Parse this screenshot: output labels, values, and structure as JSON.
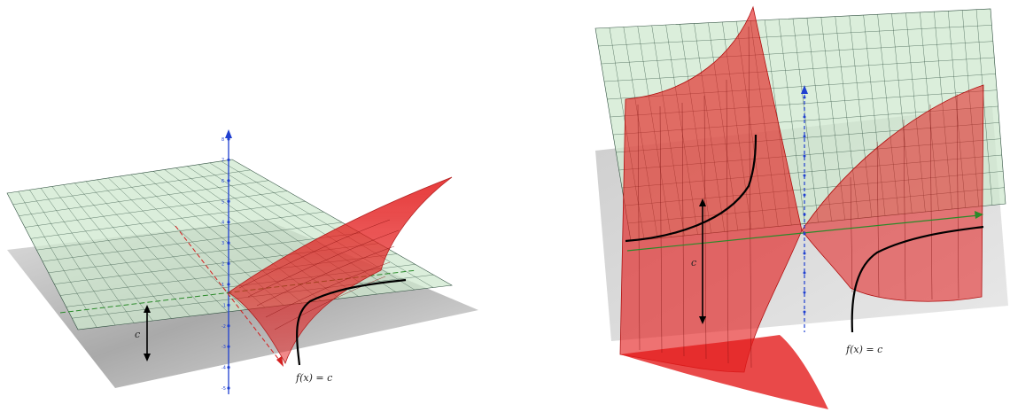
{
  "panels": [
    {
      "id": "left",
      "curve_label": "f(x) = c",
      "level_label": "c",
      "axis_ticks": [
        "8",
        "7",
        "6",
        "5",
        "4",
        "3",
        "2",
        "1",
        "-1",
        "-2",
        "-3",
        "-4",
        "-5"
      ]
    },
    {
      "id": "right",
      "curve_label": "f(x) = c",
      "level_label": "c",
      "axis_ticks": []
    }
  ],
  "colors": {
    "plane_fill": "#cfe8cf",
    "plane_grid": "#2f4f3f",
    "surface": "#e31b1b",
    "shadow": "#9a9a9a",
    "z_axis": "#1f3fd0",
    "x_axis": "#d42020",
    "y_axis": "#2a8a2a",
    "curve": "#000000"
  }
}
